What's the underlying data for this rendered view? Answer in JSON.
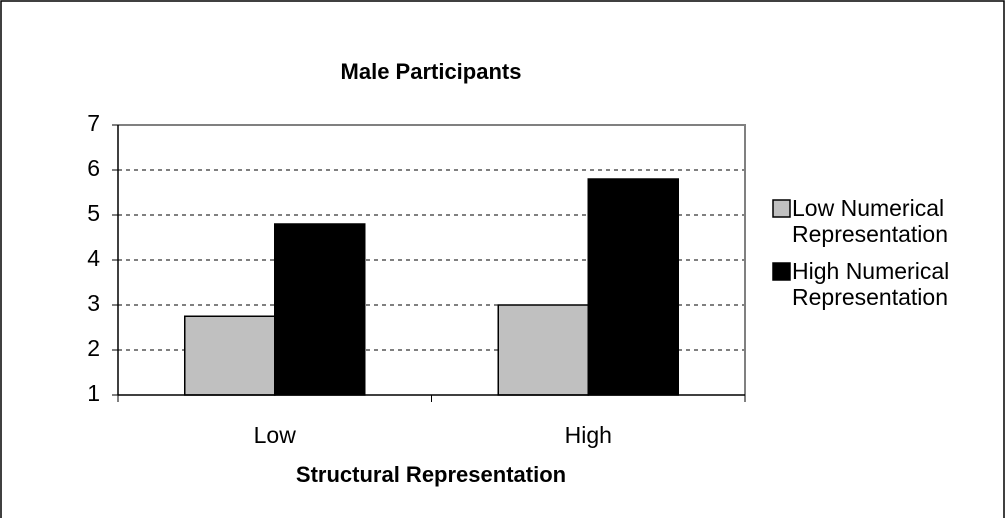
{
  "chart_data": {
    "type": "bar",
    "title": "Male Participants",
    "x_label": "Structural Representation",
    "categories": [
      "Low",
      "High"
    ],
    "series": [
      {
        "name": "Low Numerical Representation",
        "color": "#c0c0c0",
        "values": [
          2.75,
          3.0
        ]
      },
      {
        "name": "High Numerical Representation",
        "color": "#000000",
        "values": [
          4.8,
          5.8
        ]
      }
    ],
    "ylim": [
      1,
      7
    ],
    "yticks": [
      1,
      2,
      3,
      4,
      5,
      6,
      7
    ],
    "grid": true,
    "legend": "right"
  }
}
